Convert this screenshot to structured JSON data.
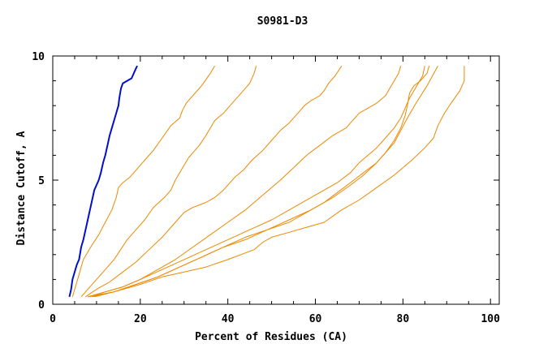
{
  "chart_data": {
    "type": "line",
    "title": "S0981-D3",
    "xlabel": "Percent of Residues (CA)",
    "ylabel": "Distance Cutoff, A",
    "xlim": [
      0,
      102
    ],
    "ylim": [
      0,
      10
    ],
    "xticks": [
      0,
      20,
      40,
      60,
      80,
      100
    ],
    "yticks": [
      0,
      5,
      10
    ],
    "xtick_labels": [
      "0",
      "20",
      "40",
      "60",
      "80",
      "100"
    ],
    "ytick_labels": [
      "0",
      "5",
      "10"
    ],
    "grid": false,
    "colors": {
      "highlight": "#0010c8",
      "other": "#ee8800"
    },
    "series": [
      {
        "highlight": true,
        "x": [
          3.8,
          4.2,
          4.5,
          5.0,
          5.5,
          6.0,
          6.5,
          7.0,
          7.5,
          8.0,
          8.5,
          9.0,
          9.5,
          10.0,
          10.5,
          11.0,
          11.5,
          12.0,
          12.5,
          13.0,
          13.5,
          14.0,
          14.5,
          15.0,
          15.2,
          15.4,
          15.6,
          16.0,
          17.0,
          18.0,
          18.5,
          19.0,
          19.3
        ],
        "y": [
          0.3,
          0.6,
          1.0,
          1.3,
          1.6,
          1.8,
          2.3,
          2.6,
          3.0,
          3.4,
          3.8,
          4.2,
          4.6,
          4.8,
          5.0,
          5.3,
          5.7,
          6.0,
          6.4,
          6.8,
          7.1,
          7.4,
          7.7,
          8.0,
          8.3,
          8.5,
          8.7,
          8.9,
          9.0,
          9.1,
          9.3,
          9.5,
          9.6
        ]
      },
      {
        "x": [
          4.5,
          5.0,
          5.5,
          6.0,
          6.5,
          7.0,
          8.0,
          9.0,
          10.5,
          12.0,
          13.5,
          14.5,
          15.0,
          16.0,
          17.5,
          19.0,
          21.0,
          23.0,
          25.0,
          27.0,
          29.0,
          29.6,
          30.5,
          32.0,
          34.0,
          36.0,
          37.0
        ],
        "y": [
          0.3,
          0.6,
          0.9,
          1.2,
          1.5,
          1.8,
          2.1,
          2.4,
          2.8,
          3.3,
          3.8,
          4.3,
          4.7,
          4.9,
          5.1,
          5.4,
          5.8,
          6.2,
          6.7,
          7.2,
          7.5,
          7.8,
          8.1,
          8.4,
          8.8,
          9.3,
          9.6
        ]
      },
      {
        "x": [
          6.5,
          8.0,
          10.0,
          12.0,
          14.0,
          15.5,
          17.0,
          19.0,
          21.0,
          23.0,
          25.5,
          27.0,
          28.0,
          29.0,
          30.0,
          31.0,
          32.0,
          33.5,
          35.0,
          36.0,
          37.0,
          39.0,
          41.0,
          43.0,
          45.0,
          46.0,
          46.5
        ],
        "y": [
          0.3,
          0.6,
          1.0,
          1.4,
          1.8,
          2.2,
          2.6,
          3.0,
          3.4,
          3.9,
          4.3,
          4.6,
          5.0,
          5.3,
          5.6,
          5.9,
          6.1,
          6.4,
          6.8,
          7.1,
          7.4,
          7.7,
          8.1,
          8.5,
          8.9,
          9.3,
          9.6
        ]
      },
      {
        "x": [
          7.5,
          10.0,
          13.0,
          16.0,
          19.0,
          22.0,
          25.0,
          28.0,
          30.0,
          32.0,
          35.0,
          37.0,
          39.0,
          40.0,
          41.5,
          43.5,
          45.5,
          48.0,
          50.0,
          52.0,
          54.0,
          56.0,
          57.5,
          59.0,
          61.0,
          62.0,
          63.0,
          64.5,
          66.0
        ],
        "y": [
          0.3,
          0.6,
          0.9,
          1.3,
          1.7,
          2.2,
          2.7,
          3.3,
          3.7,
          3.9,
          4.1,
          4.3,
          4.6,
          4.8,
          5.1,
          5.4,
          5.8,
          6.2,
          6.6,
          7.0,
          7.3,
          7.7,
          8.0,
          8.2,
          8.4,
          8.6,
          8.9,
          9.2,
          9.6
        ]
      },
      {
        "x": [
          8.5,
          12.0,
          16.0,
          20.0,
          24.0,
          28.0,
          32.0,
          36.0,
          40.0,
          44.0,
          48.0,
          52.0,
          55.0,
          58.0,
          61.0,
          64.0,
          67.0,
          68.5,
          70.0,
          72.0,
          74.0,
          76.0,
          77.0,
          78.0,
          79.0,
          79.5
        ],
        "y": [
          0.3,
          0.5,
          0.7,
          1.0,
          1.4,
          1.8,
          2.3,
          2.8,
          3.3,
          3.8,
          4.4,
          5.0,
          5.5,
          6.0,
          6.4,
          6.8,
          7.1,
          7.4,
          7.7,
          7.9,
          8.1,
          8.4,
          8.7,
          9.0,
          9.3,
          9.6
        ]
      },
      {
        "x": [
          8.0,
          12.0,
          16.0,
          20.0,
          25.0,
          30.0,
          35.0,
          40.0,
          45.0,
          50.0,
          55.0,
          60.0,
          65.0,
          68.0,
          70.0,
          72.0,
          74.0,
          76.0,
          78.0,
          79.5,
          80.5,
          81.5,
          82.5,
          83.5,
          84.5,
          85.0
        ],
        "y": [
          0.3,
          0.5,
          0.7,
          1.0,
          1.4,
          1.8,
          2.2,
          2.6,
          3.0,
          3.4,
          3.9,
          4.4,
          4.9,
          5.3,
          5.7,
          6.0,
          6.3,
          6.7,
          7.1,
          7.5,
          7.9,
          8.3,
          8.6,
          8.9,
          9.2,
          9.6
        ]
      },
      {
        "x": [
          9.0,
          14.0,
          19.0,
          24.0,
          29.0,
          34.0,
          39.0,
          44.0,
          49.0,
          54.0,
          59.0,
          64.0,
          68.0,
          71.0,
          74.0,
          76.0,
          78.0,
          79.5,
          80.5,
          81.0,
          81.5,
          82.5,
          84.0,
          85.5,
          86.0
        ],
        "y": [
          0.3,
          0.5,
          0.8,
          1.1,
          1.5,
          1.9,
          2.3,
          2.7,
          3.0,
          3.4,
          3.8,
          4.3,
          4.8,
          5.2,
          5.7,
          6.1,
          6.6,
          7.1,
          7.6,
          8.0,
          8.5,
          8.8,
          9.0,
          9.3,
          9.6
        ]
      },
      {
        "x": [
          9.5,
          14.0,
          19.0,
          24.0,
          29.0,
          34.0,
          39.0,
          44.0,
          49.0,
          54.0,
          58.0,
          62.0,
          65.0,
          68.0,
          71.0,
          74.0,
          76.0,
          78.0,
          79.5,
          81.0,
          83.0,
          85.5,
          88.0
        ],
        "y": [
          0.3,
          0.5,
          0.8,
          1.1,
          1.5,
          1.9,
          2.3,
          2.6,
          3.0,
          3.3,
          3.7,
          4.1,
          4.5,
          4.9,
          5.3,
          5.7,
          6.1,
          6.5,
          7.0,
          7.5,
          8.1,
          8.8,
          9.6
        ]
      },
      {
        "x": [
          8.0,
          14.0,
          20.0,
          25.0,
          30.0,
          35.0,
          40.0,
          46.0,
          48.0,
          50.0,
          54.0,
          58.0,
          62.0,
          66.0,
          70.0,
          74.0,
          78.0,
          82.0,
          85.0,
          87.0,
          88.0,
          89.5,
          91.0,
          93.0,
          94.0,
          94.0
        ],
        "y": [
          0.3,
          0.5,
          0.8,
          1.1,
          1.3,
          1.5,
          1.8,
          2.2,
          2.5,
          2.7,
          2.9,
          3.1,
          3.3,
          3.8,
          4.2,
          4.7,
          5.2,
          5.8,
          6.3,
          6.7,
          7.2,
          7.7,
          8.1,
          8.6,
          9.0,
          9.6
        ]
      }
    ]
  }
}
